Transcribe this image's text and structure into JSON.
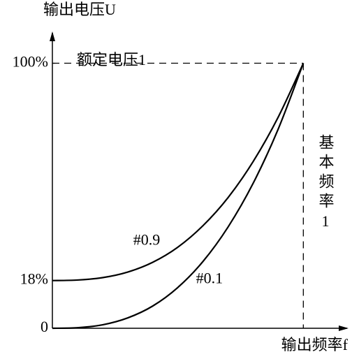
{
  "chart_data": {
    "type": "line",
    "y_label": "输出电压U",
    "x_label": "输出频率f",
    "annotations": [
      "额定电压1",
      "基本频率1"
    ],
    "x": [
      0,
      0.1,
      0.2,
      0.3,
      0.4,
      0.5,
      0.6,
      0.7,
      0.8,
      0.9,
      1.0
    ],
    "series": [
      {
        "name": "#0.9",
        "color": "#000000",
        "values": [
          18,
          18.2,
          19.1,
          21.2,
          24.9,
          30.6,
          38.7,
          49.3,
          62.9,
          79.7,
          100
        ]
      },
      {
        "name": "#0.1",
        "color": "#000000",
        "values": [
          0,
          0.2,
          1.3,
          3.9,
          8.4,
          15.4,
          25.2,
          38.2,
          54.7,
          75.2,
          100
        ]
      }
    ],
    "xlim": [
      0,
      1.18
    ],
    "ylim": [
      0,
      112
    ],
    "yticks": [
      0,
      {
        "value": 18,
        "label": "18%"
      },
      {
        "value": 100,
        "label": "100%"
      }
    ],
    "grid": false
  }
}
